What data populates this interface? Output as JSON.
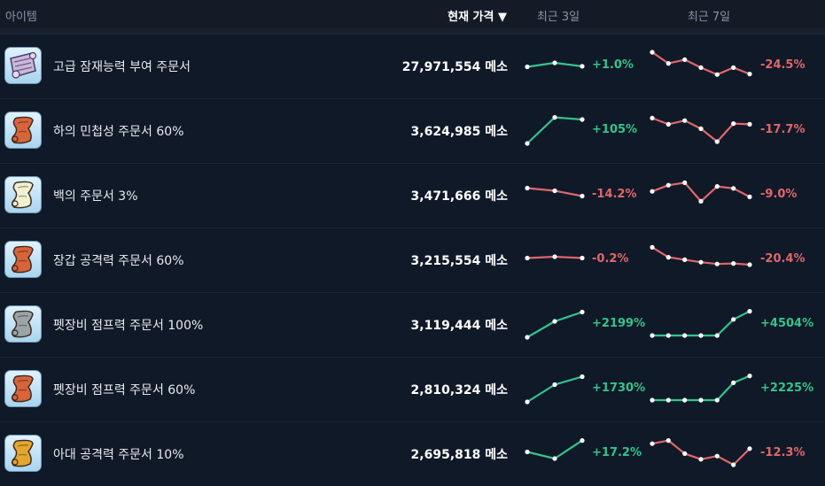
{
  "header": {
    "item": "아이템",
    "price": "현재 가격 ▼",
    "recent3": "최근 3일",
    "recent7": "최근 7일"
  },
  "colors": {
    "up": "#33c48c",
    "down": "#e0676b"
  },
  "rows": [
    {
      "icon": "mystic-scroll-icon",
      "icon_color": "#c9b8d8",
      "name": "고급 잠재능력 부여 주문서",
      "price": "27,971,554 메소",
      "pct3": "+1.0%",
      "dir3": "up",
      "spark3": [
        0.55,
        0.4,
        0.53
      ],
      "pct7": "-24.5%",
      "dir7": "down",
      "spark7": [
        0.0,
        0.45,
        0.3,
        0.62,
        0.9,
        0.62,
        0.88
      ]
    },
    {
      "icon": "orange-scroll-icon",
      "icon_color": "#d8643a",
      "name": "하의 민첩성 주문서 60%",
      "price": "3,624,985 메소",
      "pct3": "+105%",
      "dir3": "up",
      "spark3": [
        1.0,
        0.02,
        0.1
      ],
      "pct7": "-17.7%",
      "dir7": "down",
      "spark7": [
        0.05,
        0.3,
        0.15,
        0.48,
        1.0,
        0.27,
        0.3
      ]
    },
    {
      "icon": "white-scroll-icon",
      "icon_color": "#f1f0cf",
      "name": "백의 주문서 3%",
      "price": "3,471,666 메소",
      "pct3": "-14.2%",
      "dir3": "down",
      "spark3": [
        0.25,
        0.35,
        0.55
      ],
      "pct7": "-9.0%",
      "dir7": "down",
      "spark7": [
        0.4,
        0.15,
        0.05,
        0.8,
        0.2,
        0.28,
        0.62
      ]
    },
    {
      "icon": "orange-scroll-icon",
      "icon_color": "#d8643a",
      "name": "장갑 공격력 주문서 60%",
      "price": "3,215,554 메소",
      "pct3": "-0.2%",
      "dir3": "down",
      "spark3": [
        0.45,
        0.4,
        0.45
      ],
      "pct7": "-20.4%",
      "dir7": "down",
      "spark7": [
        0.05,
        0.45,
        0.55,
        0.65,
        0.72,
        0.7,
        0.75
      ]
    },
    {
      "icon": "gray-scroll-icon",
      "icon_color": "#9aa5a8",
      "name": "펫장비 점프력 주문서 100%",
      "price": "3,119,444 메소",
      "pct3": "+2199%",
      "dir3": "up",
      "spark3": [
        1.0,
        0.4,
        0.05
      ],
      "pct7": "+4504%",
      "dir7": "up",
      "spark7": [
        1.0,
        1.0,
        1.0,
        1.0,
        1.0,
        0.35,
        0.02
      ]
    },
    {
      "icon": "orange-scroll-icon",
      "icon_color": "#d8643a",
      "name": "펫장비 점프력 주문서 60%",
      "price": "2,810,324 메소",
      "pct3": "+1730%",
      "dir3": "up",
      "spark3": [
        1.0,
        0.35,
        0.05
      ],
      "pct7": "+2225%",
      "dir7": "up",
      "spark7": [
        1.0,
        1.0,
        1.0,
        1.0,
        1.0,
        0.3,
        0.02
      ]
    },
    {
      "icon": "yellow-scroll-icon",
      "icon_color": "#e4a630",
      "name": "아대 공격력 주문서 10%",
      "price": "2,695,818 메소",
      "pct3": "+17.2%",
      "dir3": "up",
      "spark3": [
        0.45,
        0.7,
        0.02
      ],
      "pct7": "-12.3%",
      "dir7": "down",
      "spark7": [
        0.15,
        0.02,
        0.55,
        0.78,
        0.65,
        1.0,
        0.35
      ]
    }
  ]
}
